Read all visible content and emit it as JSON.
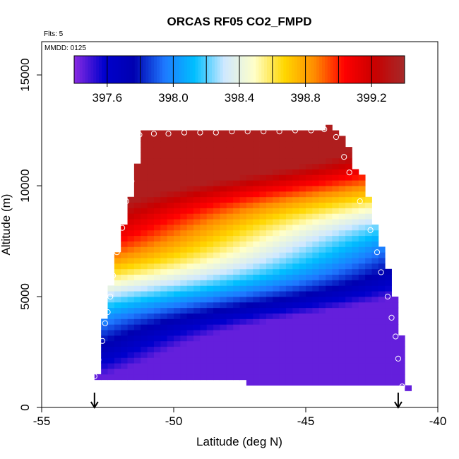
{
  "chart_data": {
    "type": "heatmap",
    "title": "ORCAS RF05 CO2_FMPD",
    "xlabel": "Latitude (deg N)",
    "ylabel": "Altitude (m)",
    "xlim": [
      -55,
      -40
    ],
    "ylim": [
      0,
      16500
    ],
    "x_ticks": [
      -55,
      -50,
      -45,
      -40
    ],
    "y_ticks": [
      0,
      5000,
      10000,
      15000
    ],
    "annotations": {
      "flights": "Flts: 5",
      "date": "MMDD: 0125"
    },
    "colorbar": {
      "range": [
        397.4,
        399.4
      ],
      "ticks": [
        "397.6",
        "398.0",
        "398.4",
        "398.8",
        "399.2"
      ],
      "stops": [
        "#8a2be2",
        "#0000cd",
        "#0000b0",
        "#1e78ff",
        "#00bfff",
        "#cfe8ff",
        "#ffffc8",
        "#ffd700",
        "#ff8c00",
        "#ff0000",
        "#c80000",
        "#a52a2a"
      ]
    },
    "field": {
      "lat_step": 0.25,
      "alt_step": 250,
      "columns": [
        {
          "lat": -53.0,
          "alt_min": 1250,
          "alt_max": 1500
        },
        {
          "lat": -52.75,
          "alt_min": 1250,
          "alt_max": 4000
        },
        {
          "lat": -52.5,
          "alt_min": 1250,
          "alt_max": 5500
        },
        {
          "lat": -52.25,
          "alt_min": 1250,
          "alt_max": 7000
        },
        {
          "lat": -52.0,
          "alt_min": 1250,
          "alt_max": 8250
        },
        {
          "lat": -51.75,
          "alt_min": 1250,
          "alt_max": 9500
        },
        {
          "lat": -51.5,
          "alt_min": 1250,
          "alt_max": 11000
        },
        {
          "lat": -51.25,
          "alt_min": 1250,
          "alt_max": 12500
        },
        {
          "lat": -47.25,
          "alt_min": 1000,
          "alt_max": 12500
        },
        {
          "lat": -44.25,
          "alt_min": 1000,
          "alt_max": 12750
        },
        {
          "lat": -44.0,
          "alt_min": 1000,
          "alt_max": 12500
        },
        {
          "lat": -43.75,
          "alt_min": 1000,
          "alt_max": 12250
        },
        {
          "lat": -43.5,
          "alt_min": 1000,
          "alt_max": 11750
        },
        {
          "lat": -43.25,
          "alt_min": 1000,
          "alt_max": 10750
        },
        {
          "lat": -43.0,
          "alt_min": 1000,
          "alt_max": 10500
        },
        {
          "lat": -42.75,
          "alt_min": 1000,
          "alt_max": 9500
        },
        {
          "lat": -42.5,
          "alt_min": 1000,
          "alt_max": 8250
        },
        {
          "lat": -42.25,
          "alt_min": 1000,
          "alt_max": 7250
        },
        {
          "lat": -42.0,
          "alt_min": 1000,
          "alt_max": 6250
        },
        {
          "lat": -41.75,
          "alt_min": 1000,
          "alt_max": 5000
        },
        {
          "lat": -41.5,
          "alt_min": 1000,
          "alt_max": 3250
        },
        {
          "lat": -41.25,
          "alt_min": 750,
          "alt_max": 1000
        }
      ]
    },
    "flight_points": [
      {
        "lat": -53.0,
        "alt": 1400
      },
      {
        "lat": -52.85,
        "alt": 2150
      },
      {
        "lat": -52.7,
        "alt": 3000
      },
      {
        "lat": -52.6,
        "alt": 3800
      },
      {
        "lat": -52.5,
        "alt": 4300
      },
      {
        "lat": -52.4,
        "alt": 5000
      },
      {
        "lat": -52.3,
        "alt": 5950
      },
      {
        "lat": -52.15,
        "alt": 7000
      },
      {
        "lat": -51.95,
        "alt": 8100
      },
      {
        "lat": -51.8,
        "alt": 9300
      },
      {
        "lat": -51.6,
        "alt": 10200
      },
      {
        "lat": -51.3,
        "alt": 12300
      },
      {
        "lat": -50.75,
        "alt": 12350
      },
      {
        "lat": -50.2,
        "alt": 12350
      },
      {
        "lat": -49.6,
        "alt": 12400
      },
      {
        "lat": -49.0,
        "alt": 12400
      },
      {
        "lat": -48.4,
        "alt": 12400
      },
      {
        "lat": -47.8,
        "alt": 12450
      },
      {
        "lat": -47.2,
        "alt": 12450
      },
      {
        "lat": -46.6,
        "alt": 12450
      },
      {
        "lat": -46.0,
        "alt": 12450
      },
      {
        "lat": -45.4,
        "alt": 12500
      },
      {
        "lat": -44.8,
        "alt": 12500
      },
      {
        "lat": -44.3,
        "alt": 12550
      },
      {
        "lat": -43.85,
        "alt": 12200
      },
      {
        "lat": -43.55,
        "alt": 11300
      },
      {
        "lat": -43.35,
        "alt": 10600
      },
      {
        "lat": -42.95,
        "alt": 9300
      },
      {
        "lat": -42.55,
        "alt": 8000
      },
      {
        "lat": -42.3,
        "alt": 7000
      },
      {
        "lat": -42.15,
        "alt": 6100
      },
      {
        "lat": -41.9,
        "alt": 5000
      },
      {
        "lat": -41.75,
        "alt": 4050
      },
      {
        "lat": -41.6,
        "alt": 3200
      },
      {
        "lat": -41.5,
        "alt": 2200
      },
      {
        "lat": -41.35,
        "alt": 950
      }
    ],
    "markers": [
      {
        "lat": -53.0,
        "kind": "arrow-down"
      },
      {
        "lat": -41.5,
        "kind": "arrow-down"
      }
    ]
  }
}
